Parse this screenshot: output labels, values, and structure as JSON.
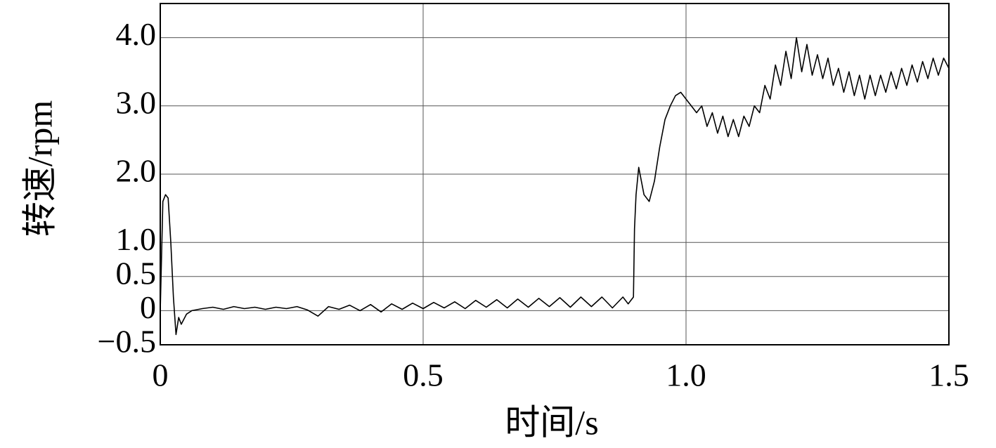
{
  "chart_data": {
    "type": "line",
    "xlabel": "时间/s",
    "ylabel": "转速/rpm",
    "x": [
      0,
      0.005,
      0.01,
      0.015,
      0.02,
      0.025,
      0.03,
      0.035,
      0.04,
      0.05,
      0.06,
      0.08,
      0.1,
      0.12,
      0.14,
      0.16,
      0.18,
      0.2,
      0.22,
      0.24,
      0.26,
      0.28,
      0.3,
      0.32,
      0.34,
      0.36,
      0.38,
      0.4,
      0.42,
      0.44,
      0.46,
      0.48,
      0.5,
      0.52,
      0.54,
      0.56,
      0.58,
      0.6,
      0.62,
      0.64,
      0.66,
      0.68,
      0.7,
      0.72,
      0.74,
      0.76,
      0.78,
      0.8,
      0.82,
      0.84,
      0.86,
      0.88,
      0.89,
      0.9,
      0.902,
      0.905,
      0.91,
      0.92,
      0.93,
      0.94,
      0.95,
      0.96,
      0.97,
      0.98,
      0.99,
      1.0,
      1.01,
      1.02,
      1.03,
      1.04,
      1.05,
      1.06,
      1.07,
      1.08,
      1.09,
      1.1,
      1.11,
      1.12,
      1.13,
      1.14,
      1.15,
      1.16,
      1.17,
      1.18,
      1.19,
      1.2,
      1.21,
      1.22,
      1.23,
      1.24,
      1.25,
      1.26,
      1.27,
      1.28,
      1.29,
      1.3,
      1.31,
      1.32,
      1.33,
      1.34,
      1.35,
      1.36,
      1.37,
      1.38,
      1.39,
      1.4,
      1.41,
      1.42,
      1.43,
      1.44,
      1.45,
      1.46,
      1.47,
      1.48,
      1.49,
      1.5
    ],
    "values": [
      0,
      1.6,
      1.7,
      1.65,
      1.0,
      0.2,
      -0.35,
      -0.1,
      -0.2,
      -0.05,
      0.0,
      0.03,
      0.05,
      0.02,
      0.06,
      0.03,
      0.05,
      0.02,
      0.05,
      0.03,
      0.06,
      0.01,
      -0.08,
      0.06,
      0.02,
      0.08,
      0.0,
      0.09,
      -0.02,
      0.1,
      0.02,
      0.11,
      0.03,
      0.12,
      0.04,
      0.13,
      0.03,
      0.15,
      0.05,
      0.16,
      0.04,
      0.17,
      0.05,
      0.18,
      0.06,
      0.19,
      0.05,
      0.2,
      0.06,
      0.2,
      0.04,
      0.2,
      0.1,
      0.2,
      1.2,
      1.7,
      2.1,
      1.7,
      1.6,
      1.9,
      2.4,
      2.8,
      3.0,
      3.15,
      3.2,
      3.1,
      3.0,
      2.9,
      3.0,
      2.7,
      2.9,
      2.6,
      2.85,
      2.55,
      2.8,
      2.55,
      2.85,
      2.7,
      3.0,
      2.9,
      3.3,
      3.1,
      3.6,
      3.3,
      3.8,
      3.4,
      4.0,
      3.5,
      3.9,
      3.45,
      3.75,
      3.4,
      3.7,
      3.3,
      3.55,
      3.2,
      3.5,
      3.15,
      3.45,
      3.1,
      3.45,
      3.15,
      3.45,
      3.2,
      3.5,
      3.25,
      3.55,
      3.3,
      3.6,
      3.35,
      3.65,
      3.4,
      3.7,
      3.45,
      3.7,
      3.55
    ],
    "color": "#000000",
    "xlim": [
      0,
      1.5
    ],
    "xticks": [
      0,
      0.5,
      {
        "value": 1,
        "label": "1.0"
      },
      1.5
    ],
    "ylim": [
      -0.5,
      4.5
    ],
    "yticks": [
      {
        "value": -0.5,
        "label": "−0.5"
      },
      0,
      0.5,
      {
        "value": 1,
        "label": "1.0"
      },
      {
        "value": 2,
        "label": "2.0"
      },
      {
        "value": 3,
        "label": "3.0"
      },
      {
        "value": 4,
        "label": "4.0"
      }
    ],
    "grid": true
  }
}
